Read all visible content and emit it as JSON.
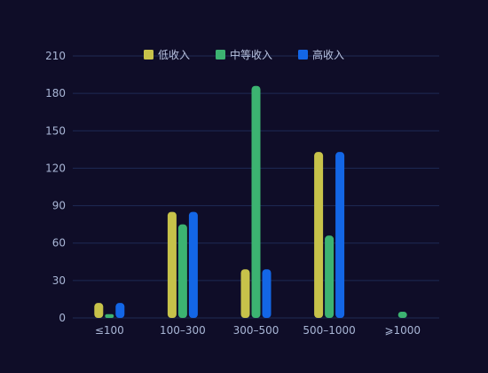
{
  "chart_data": {
    "type": "bar",
    "categories": [
      "≤100",
      "100–300",
      "300–500",
      "500–1000",
      "⩾1000"
    ],
    "series": [
      {
        "name": "低收入",
        "color": "#c7c24a",
        "values": [
          12,
          85,
          39,
          133,
          0
        ]
      },
      {
        "name": "中等收入",
        "color": "#3cb371",
        "values": [
          3,
          75,
          186,
          66,
          5
        ]
      },
      {
        "name": "高收入",
        "color": "#1366e6",
        "values": [
          12,
          85,
          39,
          133,
          0
        ]
      }
    ],
    "yticks": [
      0,
      30,
      60,
      90,
      120,
      150,
      180,
      210
    ],
    "ylim": [
      0,
      210
    ],
    "grid": true,
    "legend_position": "top-center"
  },
  "colors": {
    "background": "#0f0d28",
    "grid": "#1f2a55",
    "tick_text": "#a9b6d6"
  }
}
